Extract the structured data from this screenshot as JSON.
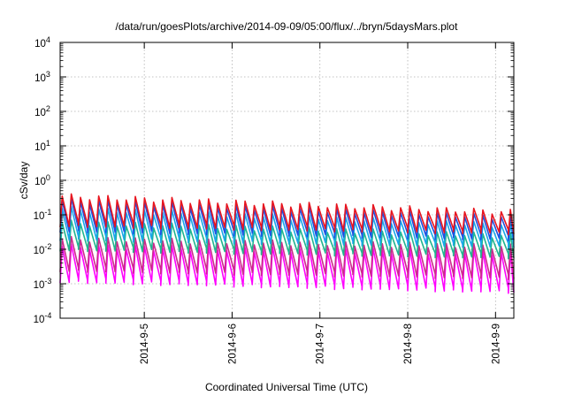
{
  "chart_data": {
    "type": "line",
    "title": "/data/run/goesPlots/archive/2014-09-09/05:00/flux/../bryn/5daysMars.plot",
    "xlabel": "Coordinated Universal Time (UTC)",
    "ylabel": "cSv/day",
    "y_scale": "log",
    "ylim": [
      0.0001,
      10000
    ],
    "y_ticks": [
      {
        "base": "10",
        "exp": "-4",
        "value": 0.0001
      },
      {
        "base": "10",
        "exp": "-3",
        "value": 0.001
      },
      {
        "base": "10",
        "exp": "-2",
        "value": 0.01
      },
      {
        "base": "10",
        "exp": "-1",
        "value": 0.1
      },
      {
        "base": "10",
        "exp": "0",
        "value": 1
      },
      {
        "base": "10",
        "exp": "1",
        "value": 10
      },
      {
        "base": "10",
        "exp": "2",
        "value": 100
      },
      {
        "base": "10",
        "exp": "3",
        "value": 1000
      },
      {
        "base": "10",
        "exp": "4",
        "value": 10000
      }
    ],
    "xlim": [
      "2014-09-04 01:00",
      "2014-09-09 05:00"
    ],
    "x_ticks": [
      {
        "label": "2014-9-5",
        "value": "2014-09-05 00:00"
      },
      {
        "label": "2014-9-6",
        "value": "2014-09-06 00:00"
      },
      {
        "label": "2014-9-7",
        "value": "2014-09-07 00:00"
      },
      {
        "label": "2014-9-8",
        "value": "2014-09-08 00:00"
      },
      {
        "label": "2014-9-9",
        "value": "2014-09-09 00:00"
      }
    ],
    "grid": true,
    "legend": "none",
    "cycle_hours": 2.5,
    "series": [
      {
        "color": "#e8141e",
        "peak_start": 0.35,
        "peak_end": 0.12,
        "trough_start": 0.05,
        "trough_end": 0.03
      },
      {
        "color": "#1f4fe0",
        "peak_start": 0.26,
        "peak_end": 0.085,
        "trough_start": 0.035,
        "trough_end": 0.02
      },
      {
        "color": "#18a8e8",
        "peak_start": 0.15,
        "peak_end": 0.05,
        "trough_start": 0.02,
        "trough_end": 0.012
      },
      {
        "color": "#21b58e",
        "peak_start": 0.06,
        "peak_end": 0.025,
        "trough_start": 0.01,
        "trough_end": 0.006
      },
      {
        "color": "#cc2a8c",
        "peak_start": 0.02,
        "peak_end": 0.012,
        "trough_start": 0.0025,
        "trough_end": 0.0015
      },
      {
        "color": "#ff00ff",
        "peak_start": 0.012,
        "peak_end": 0.008,
        "trough_start": 0.0012,
        "trough_end": 0.0006
      }
    ]
  }
}
